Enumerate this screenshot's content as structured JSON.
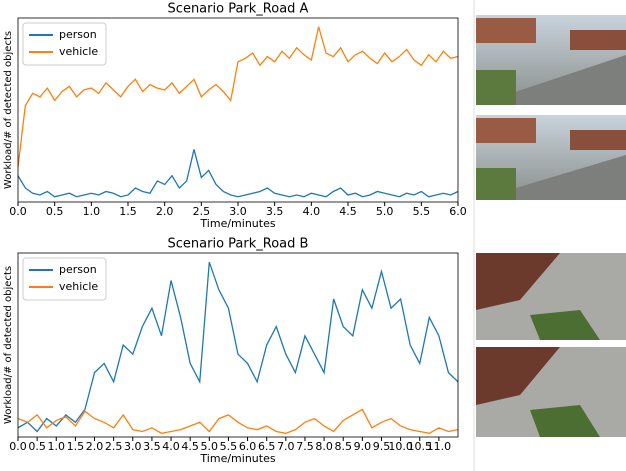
{
  "chart_data": [
    {
      "type": "line",
      "title": "Scenario Park_Road A",
      "xlabel": "Time/minutes",
      "ylabel": "Workload/# of detected objects",
      "x": [
        0,
        0.1,
        0.2,
        0.3,
        0.4,
        0.5,
        0.6,
        0.7,
        0.8,
        0.9,
        1,
        1.1,
        1.2,
        1.3,
        1.4,
        1.5,
        1.6,
        1.7,
        1.8,
        1.9,
        2,
        2.1,
        2.2,
        2.3,
        2.4,
        2.5,
        2.6,
        2.7,
        2.8,
        2.9,
        3,
        3.1,
        3.2,
        3.3,
        3.4,
        3.5,
        3.6,
        3.7,
        3.8,
        3.9,
        4,
        4.1,
        4.2,
        4.3,
        4.4,
        4.5,
        4.6,
        4.7,
        4.8,
        4.9,
        5,
        5.1,
        5.2,
        5.3,
        5.4,
        5.5,
        5.6,
        5.7,
        5.8,
        5.9,
        6
      ],
      "series": [
        {
          "name": "person",
          "color": "#1f77b4",
          "values": [
            15,
            8,
            5,
            4,
            6,
            3,
            4,
            5,
            3,
            4,
            5,
            4,
            6,
            5,
            3,
            4,
            8,
            6,
            5,
            12,
            10,
            15,
            8,
            12,
            30,
            14,
            18,
            10,
            6,
            4,
            3,
            4,
            5,
            6,
            8,
            5,
            4,
            3,
            4,
            3,
            5,
            4,
            3,
            6,
            8,
            4,
            5,
            3,
            4,
            6,
            5,
            4,
            3,
            5,
            4,
            6,
            3,
            4,
            5,
            4,
            6
          ]
        },
        {
          "name": "vehicle",
          "color": "#ff7f0e",
          "values": [
            20,
            55,
            62,
            60,
            65,
            58,
            63,
            66,
            60,
            64,
            65,
            62,
            68,
            64,
            60,
            66,
            70,
            63,
            67,
            65,
            64,
            68,
            62,
            66,
            70,
            60,
            64,
            67,
            63,
            58,
            80,
            82,
            85,
            78,
            83,
            80,
            86,
            82,
            88,
            84,
            81,
            100,
            85,
            83,
            88,
            80,
            84,
            86,
            82,
            79,
            85,
            80,
            83,
            87,
            81,
            78,
            84,
            80,
            86,
            82,
            83
          ]
        }
      ],
      "xlim": [
        0,
        6
      ],
      "xticks": [
        {
          "value": 0,
          "label": "0.0"
        },
        0.5,
        {
          "value": 1,
          "label": "1.0"
        },
        1.5,
        {
          "value": 2,
          "label": "2.0"
        },
        2.5,
        {
          "value": 3,
          "label": "3.0"
        },
        3.5,
        {
          "value": 4,
          "label": "4.0"
        },
        4.5,
        {
          "value": 5,
          "label": "5.0"
        },
        5.5,
        {
          "value": 6,
          "label": "6.0"
        }
      ],
      "ylim": [
        0,
        105
      ],
      "legend": "upper left"
    },
    {
      "type": "line",
      "title": "Scenario Park_Road B",
      "xlabel": "Time/minutes",
      "ylabel": "Workload/# of detected objects",
      "x": [
        0,
        0.25,
        0.5,
        0.75,
        1,
        1.25,
        1.5,
        1.75,
        2,
        2.25,
        2.5,
        2.75,
        3,
        3.25,
        3.5,
        3.75,
        4,
        4.25,
        4.5,
        4.75,
        5,
        5.25,
        5.5,
        5.75,
        6,
        6.25,
        6.5,
        6.75,
        7,
        7.25,
        7.5,
        7.75,
        8,
        8.25,
        8.5,
        8.75,
        9,
        9.25,
        9.5,
        9.75,
        10,
        10.25,
        10.5,
        10.75,
        11,
        11.25,
        11.5
      ],
      "series": [
        {
          "name": "person",
          "color": "#1f77b4",
          "values": [
            5,
            8,
            3,
            10,
            6,
            12,
            8,
            15,
            35,
            40,
            30,
            50,
            45,
            60,
            70,
            55,
            85,
            65,
            40,
            30,
            95,
            80,
            70,
            45,
            40,
            30,
            50,
            60,
            45,
            35,
            55,
            45,
            35,
            75,
            60,
            55,
            80,
            70,
            90,
            70,
            75,
            50,
            40,
            65,
            55,
            35,
            30
          ]
        },
        {
          "name": "vehicle",
          "color": "#ff7f0e",
          "values": [
            10,
            8,
            12,
            5,
            9,
            11,
            6,
            14,
            10,
            8,
            5,
            12,
            4,
            3,
            5,
            2,
            3,
            4,
            6,
            8,
            3,
            10,
            12,
            8,
            5,
            4,
            6,
            3,
            2,
            4,
            8,
            10,
            6,
            3,
            9,
            12,
            15,
            5,
            8,
            10,
            6,
            4,
            3,
            2,
            5,
            3,
            4
          ]
        }
      ],
      "xlim": [
        0,
        11.5
      ],
      "xticks": [
        {
          "value": 0,
          "label": "0.0"
        },
        0.5,
        {
          "value": 1,
          "label": "1.0"
        },
        1.5,
        {
          "value": 2,
          "label": "2.0"
        },
        2.5,
        {
          "value": 3,
          "label": "3.0"
        },
        3.5,
        {
          "value": 4,
          "label": "4.0"
        },
        4.5,
        {
          "value": 5,
          "label": "5.0"
        },
        5.5,
        {
          "value": 6,
          "label": "6.0"
        },
        6.5,
        {
          "value": 7,
          "label": "7.0"
        },
        7.5,
        {
          "value": 8,
          "label": "8.0"
        },
        8.5,
        {
          "value": 9,
          "label": "9.0"
        },
        9.5,
        {
          "value": 10,
          "label": "10.0"
        },
        10.5,
        {
          "value": 11,
          "label": "11.0"
        }
      ],
      "ylim": [
        0,
        100
      ],
      "legend": "upper left"
    }
  ]
}
